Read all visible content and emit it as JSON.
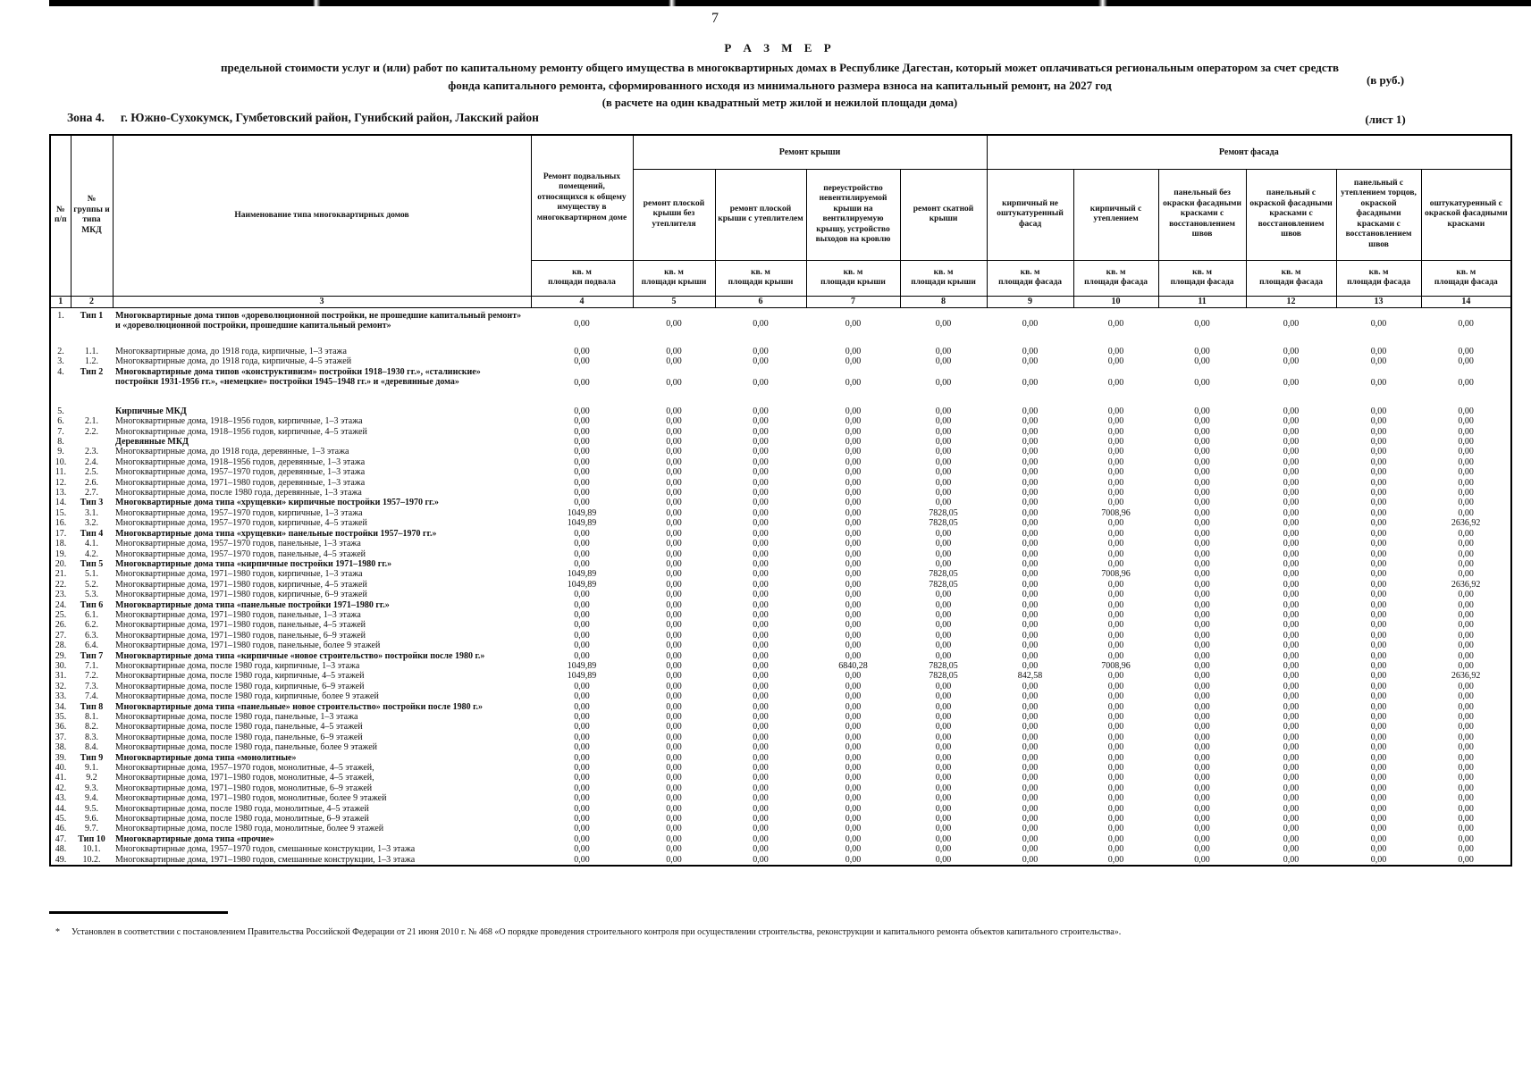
{
  "page": {
    "number": "7"
  },
  "title": {
    "line1": "Р А З М Е Р",
    "line2": "предельной стоимости услуг и (или) работ по капитальному ремонту общего имущества в многоквартирных домах в Республике Дагестан, который может оплачиваться региональным оператором  за счет средств",
    "line3": "фонда капитального ремонта, сформированного исходя из минимального размера взноса на капитальный ремонт, на 2027 год",
    "line4": "(в расчете на один квадратный метр жилой и нежилой площади дома)",
    "currency_note": "(в руб.)"
  },
  "zone": {
    "label": "Зона 4.",
    "areas": "г. Южно-Сухокумск, Гумбетовский район, Гунибский район, Лакский район",
    "sheet": "(лист 1)"
  },
  "table": {
    "left_headers": [
      "№ п/п",
      "№ группы и типа МКД",
      "Наименование типа многоквартирных домов"
    ],
    "group_headers": {
      "roof": "Ремонт крыши",
      "facade": "Ремонт фасада"
    },
    "columns": [
      {
        "num": "4",
        "header": "Ремонт подвальных помещений, относящихся к общему имуществу в многоквартирном доме",
        "unit1": "кв. м",
        "unit2": "площади подвала"
      },
      {
        "num": "5",
        "header": "ремонт плоской крыши без утеплителя",
        "unit1": "кв. м",
        "unit2": "площади крыши"
      },
      {
        "num": "6",
        "header": "ремонт плоской крыши с утеплителем",
        "unit1": "кв. м",
        "unit2": "площади крыши"
      },
      {
        "num": "7",
        "header": "переустройство невентилируемой крыши на вентилируемую крышу, устройство выходов на кровлю",
        "unit1": "кв. м",
        "unit2": "площади крыши"
      },
      {
        "num": "8",
        "header": "ремонт скатной крыши",
        "unit1": "кв. м",
        "unit2": "площади крыши"
      },
      {
        "num": "9",
        "header": "кирпичный не оштукатуренный фасад",
        "unit1": "кв. м",
        "unit2": "площади фасада"
      },
      {
        "num": "10",
        "header": "кирпичный с утеплением",
        "unit1": "кв. м",
        "unit2": "площади фасада"
      },
      {
        "num": "11",
        "header": "панельный без окраски фасадными красками с восстановлением швов",
        "unit1": "кв. м",
        "unit2": "площади фасада"
      },
      {
        "num": "12",
        "header": "панельный с окраской фасадными красками с восстановлением швов",
        "unit1": "кв. м",
        "unit2": "площади фасада"
      },
      {
        "num": "13",
        "header": "панельный с утеплением торцов, окраской фасадными красками с восстановлением швов",
        "unit1": "кв. м",
        "unit2": "площади фасада"
      },
      {
        "num": "14",
        "header": "оштукатуренный с окраской фасадными красками",
        "unit1": "кв. м",
        "unit2": "площади фасада"
      }
    ],
    "col_numbers": [
      "1",
      "2",
      "3",
      "4",
      "5",
      "6",
      "7",
      "8",
      "9",
      "10",
      "11",
      "12",
      "13",
      "14"
    ],
    "value_columns": [
      "4",
      "5",
      "6",
      "7",
      "8",
      "9",
      "10",
      "11",
      "12",
      "13",
      "14"
    ],
    "default_value": "0,00",
    "rows": [
      {
        "n": "1.",
        "g": "Тип 1",
        "bold": true,
        "tall": true,
        "name": "Многоквартирные дома типов «дореволюционной постройки, не прошедшие капитальный ремонт» и «дореволюционной постройки, прошедшие капитальный ремонт»",
        "values": {}
      },
      {
        "n": "2.",
        "g": "1.1.",
        "name": "Многоквартирные дома, до 1918 года, кирпичные, 1–3 этажа",
        "values": {}
      },
      {
        "n": "3.",
        "g": "1.2.",
        "name": "Многоквартирные дома, до 1918 года, кирпичные, 4–5 этажей",
        "values": {}
      },
      {
        "n": "4.",
        "g": "Тип 2",
        "bold": true,
        "tall": true,
        "name": "Многоквартирные дома типов «конструктивизм» постройки 1918–1930 гг.», «сталинские» постройки 1931-1956 гг.», «немецкие» постройки 1945–1948 гг.» и «деревянные дома»",
        "values": {}
      },
      {
        "n": "5.",
        "g": "",
        "bold": true,
        "name": "Кирпичные МКД",
        "values": {}
      },
      {
        "n": "6.",
        "g": "2.1.",
        "name": "Многоквартирные дома, 1918–1956 годов, кирпичные, 1–3 этажа",
        "values": {}
      },
      {
        "n": "7.",
        "g": "2.2.",
        "name": "Многоквартирные дома, 1918–1956 годов, кирпичные, 4–5 этажей",
        "values": {}
      },
      {
        "n": "8.",
        "g": "",
        "bold": true,
        "name": "Деревянные МКД",
        "values": {}
      },
      {
        "n": "9.",
        "g": "2.3.",
        "name": "Многоквартирные дома, до 1918 года, деревянные, 1–3 этажа",
        "values": {}
      },
      {
        "n": "10.",
        "g": "2.4.",
        "name": "Многоквартирные дома, 1918–1956 годов, деревянные, 1–3 этажа",
        "values": {}
      },
      {
        "n": "11.",
        "g": "2.5.",
        "name": "Многоквартирные дома, 1957–1970 годов, деревянные, 1–3 этажа",
        "values": {}
      },
      {
        "n": "12.",
        "g": "2.6.",
        "name": "Многоквартирные дома, 1971–1980 годов, деревянные, 1–3 этажа",
        "values": {}
      },
      {
        "n": "13.",
        "g": "2.7.",
        "name": "Многоквартирные дома, после 1980 года, деревянные, 1–3 этажа",
        "values": {}
      },
      {
        "n": "14.",
        "g": "Тип 3",
        "bold": true,
        "name": "Многоквартирные дома типа «хрущевки» кирпичные постройки 1957–1970 гг.»",
        "values": {}
      },
      {
        "n": "15.",
        "g": "3.1.",
        "name": "Многоквартирные дома, 1957–1970 годов, кирпичные, 1–3 этажа",
        "values": {
          "4": "1049,89",
          "8": "7828,05",
          "10": "7008,96"
        }
      },
      {
        "n": "16.",
        "g": "3.2.",
        "name": "Многоквартирные дома, 1957–1970 годов, кирпичные, 4–5 этажей",
        "values": {
          "4": "1049,89",
          "8": "7828,05",
          "14": "2636,92"
        }
      },
      {
        "n": "17.",
        "g": "Тип 4",
        "bold": true,
        "name": "Многоквартирные дома типа «хрущевки» панельные постройки 1957–1970 гг.»",
        "values": {}
      },
      {
        "n": "18.",
        "g": "4.1.",
        "name": "Многоквартирные дома, 1957–1970 годов, панельные, 1–3 этажа",
        "values": {}
      },
      {
        "n": "19.",
        "g": "4.2.",
        "name": "Многоквартирные дома, 1957–1970 годов, панельные, 4–5 этажей",
        "values": {}
      },
      {
        "n": "20.",
        "g": "Тип 5",
        "bold": true,
        "name": "Многоквартирные дома типа «кирпичные постройки 1971–1980 гг.»",
        "values": {}
      },
      {
        "n": "21.",
        "g": "5.1.",
        "name": "Многоквартирные дома, 1971–1980 годов, кирпичные, 1–3 этажа",
        "values": {
          "4": "1049,89",
          "8": "7828,05",
          "10": "7008,96"
        }
      },
      {
        "n": "22.",
        "g": "5.2.",
        "name": "Многоквартирные дома, 1971–1980 годов, кирпичные, 4–5 этажей",
        "values": {
          "4": "1049,89",
          "8": "7828,05",
          "14": "2636,92"
        }
      },
      {
        "n": "23.",
        "g": "5.3.",
        "name": "Многоквартирные дома, 1971–1980 годов, кирпичные, 6–9 этажей",
        "values": {}
      },
      {
        "n": "24.",
        "g": "Тип 6",
        "bold": true,
        "name": "Многоквартирные дома типа «панельные постройки 1971–1980 гг.»",
        "values": {}
      },
      {
        "n": "25.",
        "g": "6.1.",
        "name": "Многоквартирные дома, 1971–1980 годов, панельные, 1–3 этажа",
        "values": {}
      },
      {
        "n": "26.",
        "g": "6.2.",
        "name": "Многоквартирные дома, 1971–1980 годов, панельные, 4–5 этажей",
        "values": {}
      },
      {
        "n": "27.",
        "g": "6.3.",
        "name": "Многоквартирные дома, 1971–1980 годов, панельные, 6–9 этажей",
        "values": {}
      },
      {
        "n": "28.",
        "g": "6.4.",
        "name": "Многоквартирные дома, 1971–1980 годов, панельные, более 9 этажей",
        "values": {}
      },
      {
        "n": "29.",
        "g": "Тип 7",
        "bold": true,
        "name": "Многоквартирные дома типа «кирпичные «новое строительство» постройки после 1980 г.»",
        "values": {}
      },
      {
        "n": "30.",
        "g": "7.1.",
        "name": "Многоквартирные дома, после 1980 года, кирпичные, 1–3 этажа",
        "values": {
          "4": "1049,89",
          "7": "6840,28",
          "8": "7828,05",
          "10": "7008,96"
        }
      },
      {
        "n": "31.",
        "g": "7.2.",
        "name": "Многоквартирные дома, после 1980 года, кирпичные, 4–5 этажей",
        "values": {
          "4": "1049,89",
          "8": "7828,05",
          "9": "842,58",
          "14": "2636,92"
        }
      },
      {
        "n": "32.",
        "g": "7.3.",
        "name": "Многоквартирные дома, после 1980 года, кирпичные, 6–9 этажей",
        "values": {}
      },
      {
        "n": "33.",
        "g": "7.4.",
        "name": "Многоквартирные дома, после 1980 года, кирпичные, более 9 этажей",
        "values": {}
      },
      {
        "n": "34.",
        "g": "Тип 8",
        "bold": true,
        "name": "Многоквартирные дома типа «панельные» новое строительство» постройки после 1980 г.»",
        "values": {}
      },
      {
        "n": "35.",
        "g": "8.1.",
        "name": "Многоквартирные дома, после 1980 года, панельные, 1–3 этажа",
        "values": {}
      },
      {
        "n": "36.",
        "g": "8.2.",
        "name": "Многоквартирные дома, после 1980 года, панельные, 4–5 этажей",
        "values": {}
      },
      {
        "n": "37.",
        "g": "8.3.",
        "name": "Многоквартирные дома, после 1980 года, панельные, 6–9 этажей",
        "values": {}
      },
      {
        "n": "38.",
        "g": "8.4.",
        "name": "Многоквартирные дома, после 1980 года, панельные, более 9 этажей",
        "values": {}
      },
      {
        "n": "39.",
        "g": "Тип 9",
        "bold": true,
        "name": "Многоквартирные дома типа «монолитные»",
        "values": {}
      },
      {
        "n": "40.",
        "g": "9.1.",
        "name": "Многоквартирные дома, 1957–1970 годов, монолитные, 4–5 этажей,",
        "values": {}
      },
      {
        "n": "41.",
        "g": "9.2",
        "name": "Многоквартирные дома, 1971–1980 годов, монолитные, 4–5 этажей,",
        "values": {}
      },
      {
        "n": "42.",
        "g": "9.3.",
        "name": "Многоквартирные дома, 1971–1980 годов, монолитные, 6–9 этажей",
        "values": {}
      },
      {
        "n": "43.",
        "g": "9.4.",
        "name": "Многоквартирные дома, 1971–1980 годов, монолитные, более 9 этажей",
        "values": {}
      },
      {
        "n": "44.",
        "g": "9.5.",
        "name": "Многоквартирные дома, после 1980 года, монолитные, 4–5 этажей",
        "values": {}
      },
      {
        "n": "45.",
        "g": "9.6.",
        "name": "Многоквартирные дома, после 1980 года, монолитные, 6–9 этажей",
        "values": {}
      },
      {
        "n": "46.",
        "g": "9.7.",
        "name": "Многоквартирные дома, после 1980 года, монолитные, более 9 этажей",
        "values": {}
      },
      {
        "n": "47.",
        "g": "Тип 10",
        "bold": true,
        "name": "Многоквартирные дома типа «прочие»",
        "values": {}
      },
      {
        "n": "48.",
        "g": "10.1.",
        "name": "Многоквартирные дома, 1957–1970 годов, смешанные конструкции, 1–3 этажа",
        "values": {}
      },
      {
        "n": "49.",
        "g": "10.2.",
        "name": "Многоквартирные дома, 1971–1980 годов, смешанные конструкции, 1–3 этажа",
        "values": {}
      }
    ]
  },
  "footnote": "Установлен в соответствии с постановлением Правительства Российской Федерации от 21 июня 2010 г. № 468 «О порядке проведения строительного контроля при осуществлении строительства, реконструкции и капитального ремонта объектов капитального строительства»."
}
